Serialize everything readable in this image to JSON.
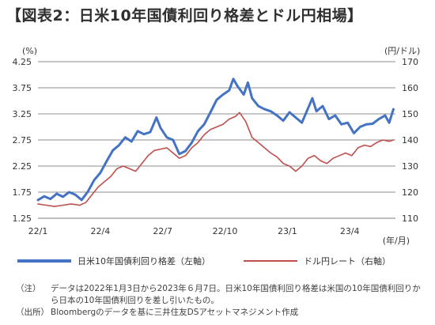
{
  "title": "【図表2：日米10年国債利回り格差とドル円相場】",
  "chart_data": {
    "type": "line",
    "left_axis": {
      "label": "(%)",
      "ticks": [
        "4.25",
        "3.75",
        "3.25",
        "2.75",
        "2.25",
        "1.75",
        "1.25"
      ],
      "range": [
        1.25,
        4.25
      ]
    },
    "right_axis": {
      "label": "(円/ドル)",
      "ticks": [
        "170",
        "160",
        "150",
        "140",
        "130",
        "120",
        "110"
      ],
      "range": [
        110,
        170
      ]
    },
    "x_ticks": [
      "22/1",
      "22/4",
      "22/7",
      "22/10",
      "23/1",
      "23/4"
    ],
    "x_unit": "(年/月)",
    "x_range_months": [
      0,
      17.2
    ],
    "grid": true,
    "series": [
      {
        "name": "日米10年国債利回り格差（左軸）",
        "axis": "left",
        "color": "#4472c4",
        "points": [
          [
            0,
            1.6
          ],
          [
            0.3,
            1.67
          ],
          [
            0.6,
            1.62
          ],
          [
            0.9,
            1.72
          ],
          [
            1.2,
            1.66
          ],
          [
            1.5,
            1.75
          ],
          [
            1.8,
            1.7
          ],
          [
            2.1,
            1.6
          ],
          [
            2.4,
            1.76
          ],
          [
            2.7,
            1.98
          ],
          [
            3.0,
            2.12
          ],
          [
            3.3,
            2.34
          ],
          [
            3.6,
            2.55
          ],
          [
            3.9,
            2.65
          ],
          [
            4.2,
            2.8
          ],
          [
            4.5,
            2.72
          ],
          [
            4.8,
            2.92
          ],
          [
            5.1,
            2.86
          ],
          [
            5.4,
            2.9
          ],
          [
            5.7,
            3.18
          ],
          [
            5.9,
            2.98
          ],
          [
            6.2,
            2.8
          ],
          [
            6.5,
            2.75
          ],
          [
            6.8,
            2.48
          ],
          [
            7.1,
            2.54
          ],
          [
            7.4,
            2.7
          ],
          [
            7.7,
            2.92
          ],
          [
            8.0,
            3.05
          ],
          [
            8.3,
            3.28
          ],
          [
            8.6,
            3.52
          ],
          [
            8.9,
            3.62
          ],
          [
            9.2,
            3.7
          ],
          [
            9.4,
            3.92
          ],
          [
            9.6,
            3.78
          ],
          [
            9.9,
            3.62
          ],
          [
            10.1,
            3.85
          ],
          [
            10.3,
            3.55
          ],
          [
            10.6,
            3.4
          ],
          [
            10.9,
            3.34
          ],
          [
            11.2,
            3.3
          ],
          [
            11.5,
            3.22
          ],
          [
            11.8,
            3.12
          ],
          [
            12.1,
            3.28
          ],
          [
            12.4,
            3.18
          ],
          [
            12.7,
            3.08
          ],
          [
            13.0,
            3.36
          ],
          [
            13.2,
            3.55
          ],
          [
            13.4,
            3.3
          ],
          [
            13.7,
            3.4
          ],
          [
            14.0,
            3.15
          ],
          [
            14.3,
            3.22
          ],
          [
            14.6,
            3.05
          ],
          [
            14.9,
            3.08
          ],
          [
            15.2,
            2.88
          ],
          [
            15.5,
            3.0
          ],
          [
            15.8,
            3.05
          ],
          [
            16.1,
            3.06
          ],
          [
            16.4,
            3.15
          ],
          [
            16.7,
            3.22
          ],
          [
            16.9,
            3.08
          ],
          [
            17.1,
            3.34
          ]
        ]
      },
      {
        "name": "ドル円レート（右軸）",
        "axis": "right",
        "color": "#c0504d",
        "points": [
          [
            0,
            115.5
          ],
          [
            0.4,
            115.0
          ],
          [
            0.8,
            114.5
          ],
          [
            1.2,
            115.0
          ],
          [
            1.6,
            115.5
          ],
          [
            2.0,
            115.0
          ],
          [
            2.3,
            116.0
          ],
          [
            2.6,
            119.0
          ],
          [
            2.9,
            122.0
          ],
          [
            3.2,
            124.0
          ],
          [
            3.5,
            126.0
          ],
          [
            3.8,
            129.0
          ],
          [
            4.1,
            130.0
          ],
          [
            4.4,
            129.0
          ],
          [
            4.7,
            128.0
          ],
          [
            5.0,
            131.0
          ],
          [
            5.3,
            134.0
          ],
          [
            5.6,
            136.0
          ],
          [
            5.9,
            136.5
          ],
          [
            6.2,
            137.0
          ],
          [
            6.5,
            135.0
          ],
          [
            6.8,
            133.0
          ],
          [
            7.1,
            134.0
          ],
          [
            7.4,
            137.0
          ],
          [
            7.7,
            139.0
          ],
          [
            8.0,
            142.0
          ],
          [
            8.3,
            144.0
          ],
          [
            8.6,
            145.0
          ],
          [
            8.9,
            146.0
          ],
          [
            9.2,
            148.0
          ],
          [
            9.5,
            149.0
          ],
          [
            9.7,
            150.5
          ],
          [
            10.0,
            147.0
          ],
          [
            10.3,
            141.0
          ],
          [
            10.6,
            139.0
          ],
          [
            10.9,
            137.0
          ],
          [
            11.2,
            135.0
          ],
          [
            11.5,
            133.5
          ],
          [
            11.8,
            131.0
          ],
          [
            12.1,
            130.0
          ],
          [
            12.4,
            128.0
          ],
          [
            12.7,
            130.0
          ],
          [
            13.0,
            133.0
          ],
          [
            13.3,
            134.0
          ],
          [
            13.6,
            132.0
          ],
          [
            13.9,
            131.0
          ],
          [
            14.2,
            133.0
          ],
          [
            14.5,
            134.0
          ],
          [
            14.8,
            135.0
          ],
          [
            15.1,
            134.0
          ],
          [
            15.4,
            137.0
          ],
          [
            15.7,
            138.0
          ],
          [
            16.0,
            137.5
          ],
          [
            16.3,
            139.0
          ],
          [
            16.6,
            140.0
          ],
          [
            16.9,
            139.5
          ],
          [
            17.1,
            140.0
          ]
        ]
      }
    ]
  },
  "notes": [
    {
      "label": "（注）",
      "text": "データは2022年1月3日から2023年６月7日。日米10年国債利回り格差は米国の10年国債利回りから日本の10年国債利回りを差し引いたもの。"
    },
    {
      "label": "（出所）",
      "text": "Bloombergのデータを基に三井住友DSアセットマネジメント作成"
    }
  ]
}
